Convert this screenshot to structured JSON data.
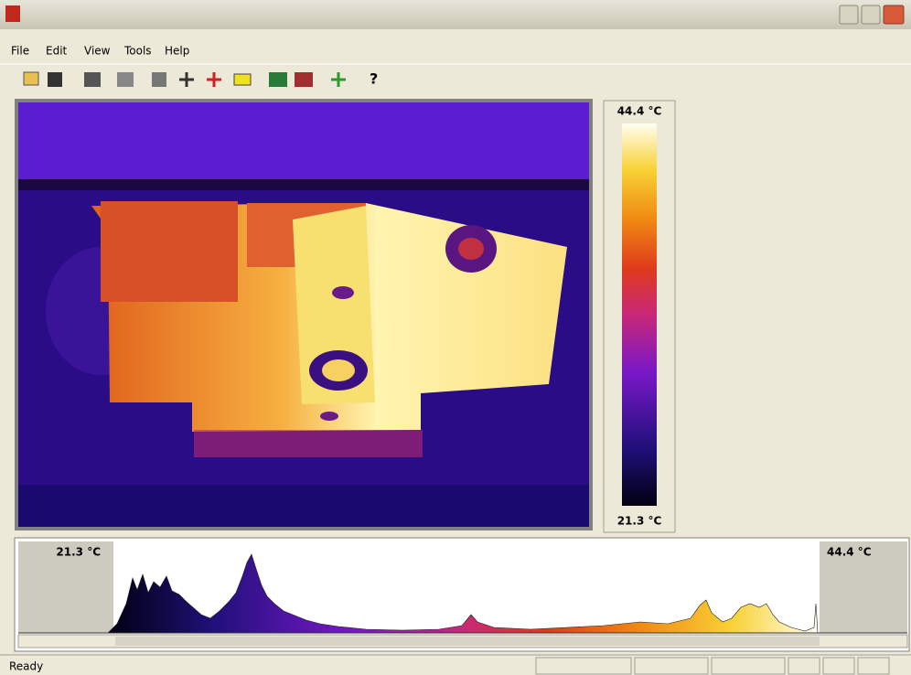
{
  "menu": [
    "File",
    "Edit",
    "View",
    "Tools",
    "Help"
  ],
  "scale": {
    "max": "44.4 °C",
    "min": "21.3 °C"
  },
  "histogram": {
    "min_label": "21.3 °C",
    "max_label": "44.4 °C"
  },
  "status": "Ready"
}
